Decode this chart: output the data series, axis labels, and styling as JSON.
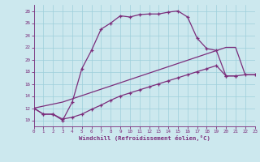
{
  "xlabel": "Windchill (Refroidissement éolien,°C)",
  "xlim": [
    0,
    23
  ],
  "ylim": [
    9,
    29
  ],
  "yticks": [
    10,
    12,
    14,
    16,
    18,
    20,
    22,
    24,
    26,
    28
  ],
  "xticks": [
    0,
    1,
    2,
    3,
    4,
    5,
    6,
    7,
    8,
    9,
    10,
    11,
    12,
    13,
    14,
    15,
    16,
    17,
    18,
    19,
    20,
    21,
    22,
    23
  ],
  "line_color": "#7b2d7b",
  "bg_color": "#cce8ee",
  "grid_color": "#9ecfda",
  "line1_x": [
    0,
    1,
    2,
    3,
    4,
    5,
    6,
    7,
    8,
    9,
    10,
    11,
    12,
    13,
    14,
    15,
    16,
    17,
    18,
    19,
    20,
    21
  ],
  "line1_y": [
    12.0,
    11.0,
    11.0,
    10.0,
    13.0,
    18.5,
    21.5,
    25.0,
    26.0,
    27.2,
    27.0,
    27.4,
    27.5,
    27.5,
    27.8,
    28.0,
    27.0,
    23.5,
    21.8,
    21.5,
    17.3,
    17.3
  ],
  "line2_x": [
    0,
    1,
    2,
    3,
    4,
    5,
    6,
    7,
    8,
    9,
    10,
    11,
    12,
    13,
    14,
    15,
    16,
    17,
    18,
    19,
    20,
    21,
    22,
    23
  ],
  "line2_y": [
    12.0,
    11.0,
    11.0,
    10.2,
    10.5,
    11.0,
    11.8,
    12.5,
    13.3,
    14.0,
    14.5,
    15.0,
    15.5,
    16.0,
    16.5,
    17.0,
    17.5,
    18.0,
    18.5,
    19.0,
    17.3,
    17.3,
    17.5,
    17.5
  ],
  "line3_x": [
    0,
    3,
    20,
    21,
    22,
    23
  ],
  "line3_y": [
    12.0,
    13.0,
    22.0,
    22.0,
    17.5,
    17.5
  ]
}
